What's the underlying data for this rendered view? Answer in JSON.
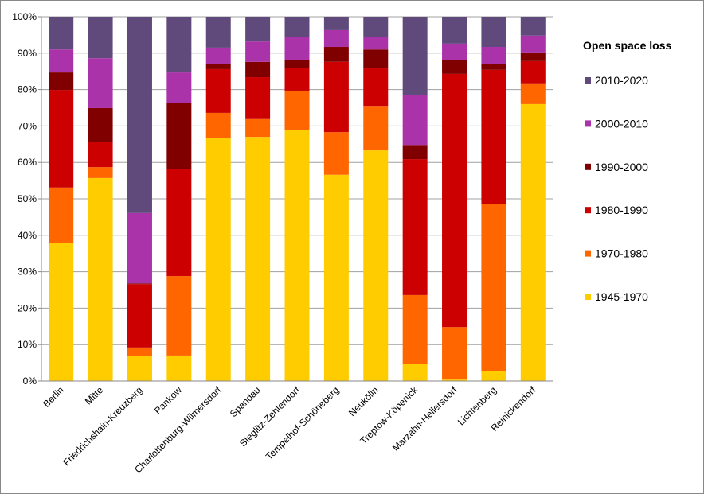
{
  "chart_data": {
    "type": "stacked_bar",
    "legend_title": "Open space loss",
    "categories": [
      "Berlin",
      "Mitte",
      "Friedrichshain-Kreuzberg",
      "Pankow",
      "Charlottenburg-Wilmersdorf",
      "Spandau",
      "Steglitz-Zehlendorf",
      "Tempelhof-Schöneberg",
      "Neukölln",
      "Treptow-Köpenick",
      "Marzahn-Hellersdorf",
      "Lichtenberg",
      "Reinickendorf"
    ],
    "series": [
      {
        "name": "1945-1970",
        "color": "#FFCC00",
        "values": [
          37.8,
          55.7,
          6.8,
          7.0,
          66.6,
          67.0,
          69.0,
          56.6,
          63.3,
          4.6,
          0.4,
          2.8,
          76.0
        ]
      },
      {
        "name": "1970-1980",
        "color": "#FF6600",
        "values": [
          15.3,
          3.0,
          2.4,
          21.8,
          7.0,
          5.1,
          10.7,
          11.7,
          12.2,
          19.0,
          14.4,
          45.7,
          5.7
        ]
      },
      {
        "name": "1980-1990",
        "color": "#CC0000",
        "values": [
          26.8,
          7.0,
          17.4,
          29.3,
          12.0,
          11.3,
          6.3,
          19.3,
          10.3,
          37.3,
          69.5,
          36.9,
          6.1
        ]
      },
      {
        "name": "1990-2000",
        "color": "#800000",
        "values": [
          4.8,
          9.2,
          0.2,
          18.1,
          1.3,
          4.2,
          2.0,
          4.1,
          5.2,
          3.9,
          3.9,
          1.7,
          2.4
        ]
      },
      {
        "name": "2000-2010",
        "color": "#AA33AA",
        "values": [
          6.3,
          13.7,
          19.3,
          8.5,
          4.6,
          5.6,
          6.5,
          4.6,
          3.5,
          13.8,
          4.4,
          4.6,
          4.6
        ]
      },
      {
        "name": "2010-2020",
        "color": "#604A7B",
        "values": [
          9.0,
          11.4,
          53.9,
          15.3,
          8.5,
          6.8,
          5.5,
          3.7,
          5.5,
          21.4,
          7.4,
          8.3,
          5.2
        ]
      }
    ],
    "ylim": [
      0,
      100
    ],
    "yticks": [
      {
        "value": 0,
        "label": "0%"
      },
      {
        "value": 10,
        "label": "10%"
      },
      {
        "value": 20,
        "label": "20%"
      },
      {
        "value": 30,
        "label": "30%"
      },
      {
        "value": 40,
        "label": "40%"
      },
      {
        "value": 50,
        "label": "50%"
      },
      {
        "value": 60,
        "label": "60%"
      },
      {
        "value": 70,
        "label": "70%"
      },
      {
        "value": 80,
        "label": "80%"
      },
      {
        "value": 90,
        "label": "90%"
      },
      {
        "value": 100,
        "label": "100%"
      }
    ],
    "grid": true,
    "legend": "right"
  }
}
